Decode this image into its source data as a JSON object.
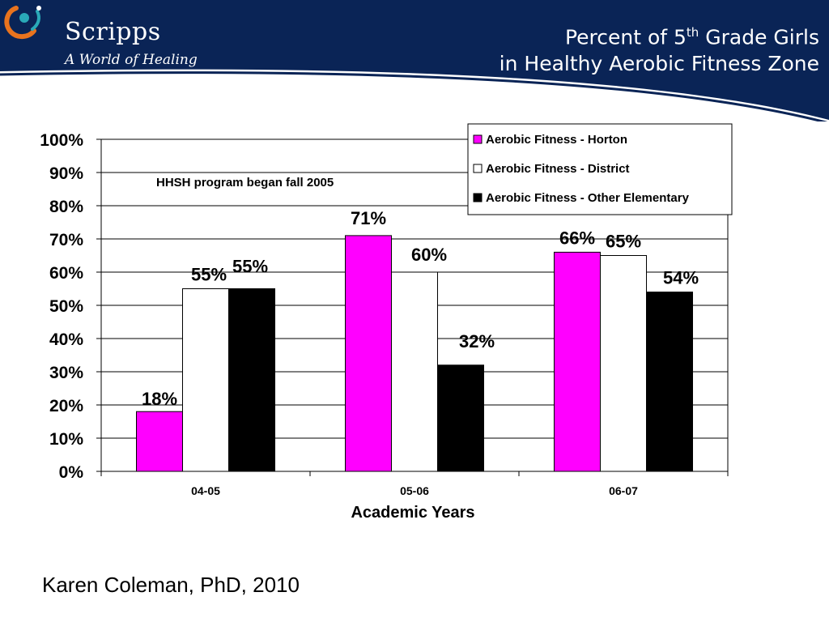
{
  "header": {
    "brand": "Scripps",
    "tagline": "A World of Healing",
    "title_line1_pre": "Percent of 5",
    "title_line1_sup": "th",
    "title_line1_post": " Grade Girls",
    "title_line2": "in Healthy Aerobic Fitness Zone",
    "colors": {
      "navy": "#0a2456",
      "stripe": "#ffffff",
      "logo_orange": "#e8731e",
      "logo_teal": "#2aa9b8"
    }
  },
  "caption": "Karen Coleman, PhD, 2010",
  "chart_data": {
    "type": "bar",
    "categories": [
      "04-05",
      "05-06",
      "06-07"
    ],
    "series": [
      {
        "name": "Aerobic Fitness - Horton",
        "values": [
          18,
          71,
          66
        ],
        "color": "#ff00ff"
      },
      {
        "name": "Aerobic Fitness - District",
        "values": [
          55,
          60,
          65
        ],
        "color": "#ffffff"
      },
      {
        "name": "Aerobic Fitness - Other Elementary",
        "values": [
          55,
          32,
          54
        ],
        "color": "#000000"
      }
    ],
    "data_labels": [
      [
        "18%",
        "71%",
        "66%"
      ],
      [
        "55%",
        "60%",
        "65%"
      ],
      [
        "55%",
        "32%",
        "54%"
      ]
    ],
    "annotation": "HHSH program began fall 2005",
    "xlabel": "Academic Years",
    "ylabel": "",
    "ylim": [
      0,
      100
    ],
    "yticks": [
      "0%",
      "10%",
      "20%",
      "30%",
      "40%",
      "50%",
      "60%",
      "70%",
      "80%",
      "90%",
      "100%"
    ],
    "grid": true,
    "legend": "top-right"
  }
}
